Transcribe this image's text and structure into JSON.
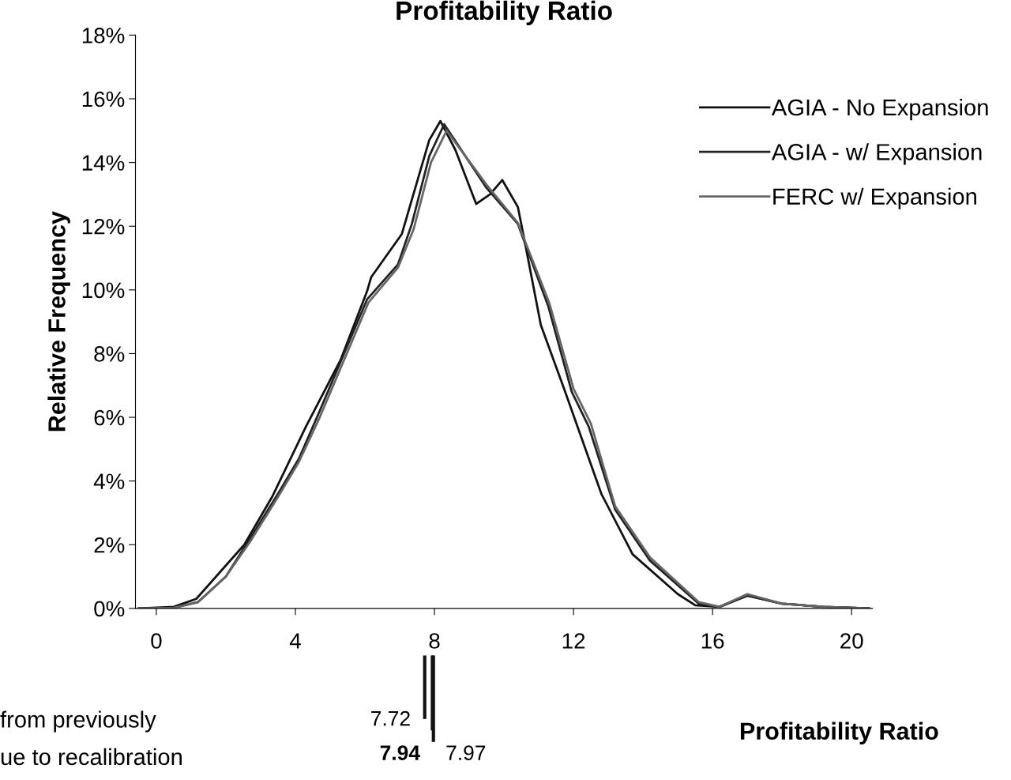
{
  "chart_data": {
    "type": "line",
    "title": "Profitability Ratio",
    "xlabel": "Profitability Ratio",
    "ylabel": "Relative Frequency",
    "xlim": [
      -0.6,
      20.6
    ],
    "xticks": [
      0,
      4,
      8,
      12,
      16,
      20
    ],
    "ylim": [
      0,
      18
    ],
    "yticks": [
      {
        "value": 0,
        "label": "0%"
      },
      {
        "value": 2,
        "label": "2%"
      },
      {
        "value": 4,
        "label": "4%"
      },
      {
        "value": 6,
        "label": "6%"
      },
      {
        "value": 8,
        "label": "8%"
      },
      {
        "value": 10,
        "label": "10%"
      },
      {
        "value": 12,
        "label": "12%"
      },
      {
        "value": 14,
        "label": "14%"
      },
      {
        "value": 16,
        "label": "16%"
      },
      {
        "value": 18,
        "label": "18%"
      }
    ],
    "grid": false,
    "legend": "top right",
    "marker": "none",
    "series": [
      {
        "name": "AGIA - No Expansion",
        "color": "#111111",
        "line_style": "solid",
        "x": [
          -0.5,
          0.5,
          1.15,
          2.53,
          3.33,
          4.3,
          5.3,
          6.06,
          6.18,
          7.06,
          7.85,
          8.17,
          8.6,
          9.2,
          9.6,
          9.95,
          10.4,
          10.6,
          11.06,
          11.76,
          12.8,
          13.7,
          15.0,
          15.5,
          16.2,
          17.0,
          18.0,
          19.2,
          20.5
        ],
        "values": [
          0,
          0.05,
          0.3,
          2.0,
          3.5,
          5.7,
          7.8,
          9.95,
          10.4,
          11.75,
          14.7,
          15.3,
          14.4,
          12.7,
          13.0,
          13.45,
          12.6,
          11.5,
          8.9,
          6.8,
          3.6,
          1.7,
          0.45,
          0.1,
          0.05,
          0.4,
          0.15,
          0.05,
          0
        ]
      },
      {
        "name": "AGIA - w/ Expansion",
        "color": "#222222",
        "line_style": "solid",
        "x": [
          -0.5,
          0.5,
          1.2,
          2.0,
          2.7,
          3.5,
          4.1,
          4.68,
          6.06,
          6.95,
          7.35,
          7.85,
          8.28,
          9.5,
          10.4,
          11.27,
          11.95,
          12.44,
          13.2,
          14.2,
          15.6,
          16.2,
          17.0,
          18.0,
          19.2,
          20.5
        ],
        "values": [
          0,
          0.02,
          0.2,
          1.0,
          2.2,
          3.6,
          4.7,
          6.15,
          9.7,
          10.8,
          12.07,
          14.2,
          15.2,
          13.2,
          12.07,
          9.5,
          6.8,
          5.7,
          3.1,
          1.5,
          0.15,
          0.05,
          0.4,
          0.15,
          0.05,
          0
        ]
      },
      {
        "name": "FERC w/ Expansion",
        "color": "#666666",
        "line_style": "solid",
        "x": [
          -0.5,
          0.5,
          1.2,
          2.0,
          2.7,
          3.5,
          4.1,
          4.7,
          6.1,
          6.95,
          7.4,
          7.9,
          8.35,
          9.5,
          10.4,
          11.3,
          12.0,
          12.5,
          13.2,
          14.2,
          15.6,
          16.2,
          17.0,
          18.0,
          19.2,
          20.5
        ],
        "values": [
          0,
          0.02,
          0.2,
          1.0,
          2.1,
          3.5,
          4.6,
          6.0,
          9.6,
          10.7,
          11.9,
          14.0,
          15.0,
          13.3,
          12.1,
          9.6,
          6.9,
          5.8,
          3.2,
          1.6,
          0.2,
          0.05,
          0.45,
          0.15,
          0.05,
          0
        ]
      }
    ],
    "ref_lines": [
      {
        "axis": "x",
        "value": 7.72,
        "label": "7.72",
        "color": "#111111"
      },
      {
        "axis": "x",
        "value": 7.94,
        "label": "7.94",
        "color": "#111111"
      },
      {
        "axis": "x",
        "value": 7.97,
        "label": "7.97",
        "color": "#111111"
      }
    ],
    "annotations": [
      "from previously",
      "ue to recalibration"
    ]
  }
}
